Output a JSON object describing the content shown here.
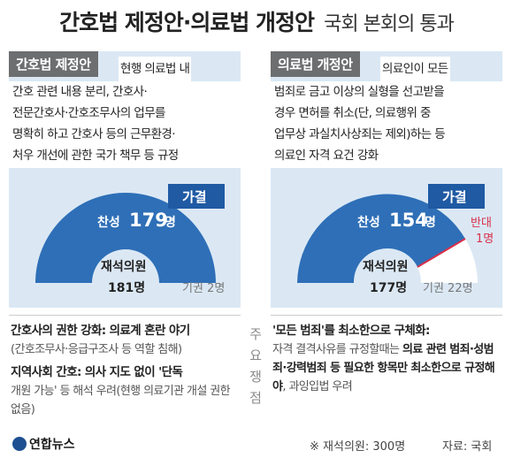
{
  "title": {
    "main": "간호법 제정안·의료법 개정안",
    "sub": "국회 본회의 통과"
  },
  "left": {
    "badge": "간호법 제정안",
    "desc": [
      "현행 의료법 내",
      "간호 관련 내용 분리, 간호사·",
      "전문간호사·간호조무사의 업무를",
      "명확히 하고 간호사 등의 근무환경·",
      "처우 개선에 관한 국가 책무 등 규정"
    ],
    "result": "가결",
    "yes_label": "찬성",
    "yes_value": "179",
    "yes_unit": "명",
    "present_label": "재석의원",
    "present_value": "181명",
    "abstain": "기권 2명",
    "issues": [
      {
        "title": "간호사의 권한 강화: 의료계 혼란 야기",
        "text": "(간호조무사·응급구조사 등 역할 침해)"
      },
      {
        "title": "지역사회 간호: 의사 지도 없이 '단독",
        "text": "개원 가능' 등 해석 우려(현행 의료기관 개설 권한 없음)"
      }
    ]
  },
  "right": {
    "badge": "의료법 개정안",
    "desc": [
      "의료인이 모든",
      "범죄로 금고 이상의 실형을 선고받을",
      "경우 면허를 취소(단, 의료행위 중",
      "업무상 과실치사상죄는 제외)하는 등",
      "의료인 자격 요건 강화"
    ],
    "result": "가결",
    "yes_label": "찬성",
    "yes_value": "154",
    "yes_unit": "명",
    "no_label": "반대",
    "no_value": "1명",
    "present_label": "재석의원",
    "present_value": "177명",
    "abstain": "기권 22명",
    "issues": [
      {
        "title": "'모든 범죄'를 최소한으로 구체화:",
        "text": "자격 결격사유를 규정할때는",
        "bold": "의료 관련 범죄·성범죄·강력범죄 등 필요한 항목만 최소한으로 규정해야",
        "tail": ", 과잉입법 우려"
      }
    ]
  },
  "center_label": "주요 쟁점",
  "chart_data": [
    {
      "type": "pie",
      "title": "간호법 제정안",
      "labels": [
        "찬성",
        "반대",
        "기권"
      ],
      "values": [
        179,
        0,
        2
      ],
      "total_present": 181
    },
    {
      "type": "pie",
      "title": "의료법 개정안",
      "labels": [
        "찬성",
        "반대",
        "기권"
      ],
      "values": [
        154,
        1,
        22
      ],
      "total_present": 177
    }
  ],
  "colors": {
    "yes": "#2e6fb7",
    "no": "#d9304a",
    "abstain": "#ffffff",
    "badge": "#6d6e70",
    "panel": "#dbe8f4"
  },
  "footer": {
    "logo": "연합뉴스",
    "note": "※ 재석의원: 300명",
    "source": "자료: 국회"
  }
}
